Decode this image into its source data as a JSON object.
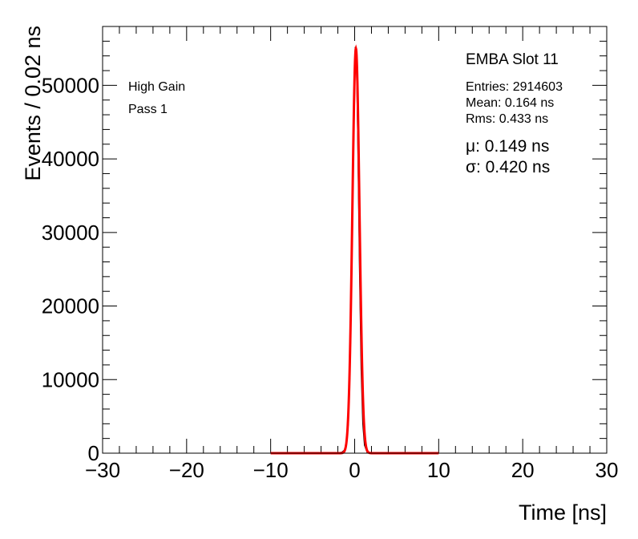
{
  "chart_data": {
    "type": "line",
    "title": "",
    "xlabel": "Time [ns]",
    "ylabel": "Events / 0.02 ns",
    "xlim": [
      -30,
      30
    ],
    "ylim": [
      0,
      58000
    ],
    "xticks": [
      -30,
      -20,
      -10,
      0,
      10,
      20,
      30
    ],
    "xtick_labels": [
      "−30",
      "−20",
      "−10",
      "0",
      "10",
      "20",
      "30"
    ],
    "yticks": [
      0,
      10000,
      20000,
      30000,
      40000,
      50000
    ],
    "ytick_labels": [
      "0",
      "10000",
      "20000",
      "30000",
      "40000",
      "50000"
    ],
    "grid": false,
    "legend": "none",
    "annotations": [
      "High Gain",
      "Pass 1"
    ],
    "stats": {
      "title": "EMBA Slot 11",
      "entries": "Entries: 2914603",
      "mean": "Mean: 0.164 ns",
      "rms": "Rms: 0.433 ns",
      "mu": "μ: 0.149 ns",
      "sigma": "σ: 0.420 ns"
    },
    "series": [
      {
        "color": "#000000",
        "type": "histogram",
        "x": [
          -10,
          -2,
          -1.5,
          -1.2,
          -1.0,
          -0.8,
          -0.6,
          -0.4,
          -0.2,
          0.0,
          0.1,
          0.2,
          0.3,
          0.4,
          0.6,
          0.8,
          1.0,
          1.2,
          1.5,
          2,
          10
        ],
        "y": [
          0,
          0,
          100,
          400,
          1200,
          3800,
          10500,
          22500,
          38500,
          51500,
          55200,
          54500,
          50000,
          42500,
          25500,
          11500,
          4000,
          1100,
          150,
          0,
          0
        ]
      },
      {
        "color": "#ff0000",
        "type": "fit",
        "function": "gaussian",
        "mu": 0.149,
        "sigma": 0.42,
        "amplitude": 55000,
        "range": [
          -10,
          10
        ]
      }
    ]
  }
}
